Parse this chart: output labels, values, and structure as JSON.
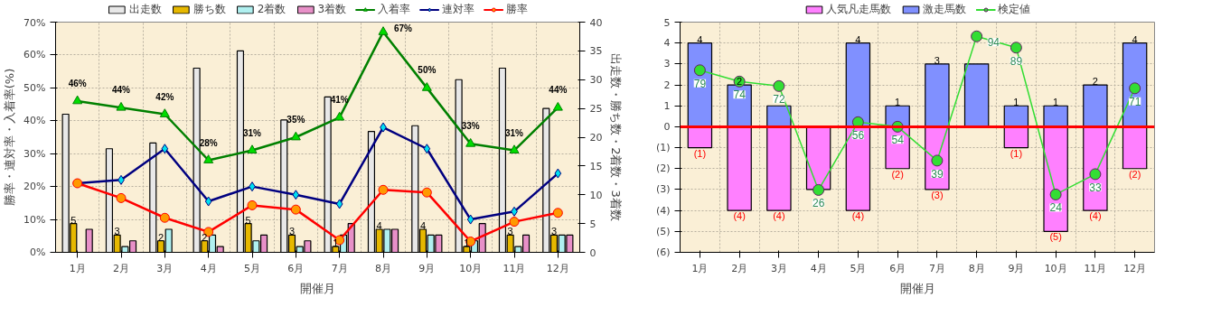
{
  "chart_data": [
    {
      "type": "bar",
      "xlabel": "開催月",
      "ylabel": "勝率・連対率・入着率(%)",
      "y2label": "出走数・勝ち数・2着数・3着数",
      "categories": [
        "1月",
        "2月",
        "3月",
        "4月",
        "5月",
        "6月",
        "7月",
        "8月",
        "9月",
        "10月",
        "11月",
        "12月"
      ],
      "ylim": [
        0,
        70
      ],
      "yticks": [
        {
          "value": 0,
          "label": "0%"
        },
        {
          "value": 10,
          "label": "10%"
        },
        {
          "value": 20,
          "label": "20%"
        },
        {
          "value": 30,
          "label": "30%"
        },
        {
          "value": 40,
          "label": "40%"
        },
        {
          "value": 50,
          "label": "50%"
        },
        {
          "value": 60,
          "label": "60%"
        },
        {
          "value": 70,
          "label": "70%"
        }
      ],
      "y2lim": [
        0,
        40
      ],
      "y2ticks": [
        0,
        5,
        10,
        15,
        20,
        25,
        30,
        35,
        40
      ],
      "grid": true,
      "legend": "top",
      "series": [
        {
          "name": "出走数",
          "color": "#e8e8e8",
          "axis": "y2",
          "values": [
            24,
            18,
            19,
            32,
            35,
            23,
            27,
            21,
            22,
            30,
            32,
            25
          ]
        },
        {
          "name": "勝ち数",
          "color": "#e6b800",
          "axis": "y2",
          "values": [
            5,
            3,
            2,
            2,
            5,
            3,
            1,
            4,
            4,
            1,
            3,
            3
          ],
          "value_labels": [
            "5",
            "3",
            "2",
            "2",
            "5",
            "3",
            "1",
            "4",
            "4",
            "1",
            "3",
            "3"
          ]
        },
        {
          "name": "2着数",
          "color": "#b0f0f0",
          "axis": "y2",
          "values": [
            0,
            1,
            4,
            3,
            2,
            1,
            3,
            4,
            3,
            2,
            1,
            3
          ]
        },
        {
          "name": "3着数",
          "color": "#e890c8",
          "axis": "y2",
          "values": [
            4,
            2,
            0,
            1,
            3,
            2,
            5,
            4,
            3,
            5,
            3,
            3
          ]
        },
        {
          "name": "入着率",
          "type": "line",
          "marker": "triangle",
          "color": "#008000",
          "values": [
            46,
            44,
            42,
            28,
            31,
            35,
            41,
            67,
            50,
            33,
            31,
            44
          ],
          "value_labels": [
            "46%",
            "44%",
            "42%",
            "28%",
            "31%",
            "35%",
            "41%",
            "67%",
            "50%",
            "33%",
            "31%",
            "44%"
          ]
        },
        {
          "name": "連対率",
          "type": "line",
          "marker": "diamond",
          "color": "#000080",
          "values": [
            21,
            22,
            31.5,
            15.5,
            20,
            17.5,
            14.7,
            38,
            31.5,
            10,
            12.4,
            24
          ]
        },
        {
          "name": "勝率",
          "type": "line",
          "marker": "circle",
          "color": "#ff0000",
          "values": [
            21,
            16.5,
            10.5,
            6.2,
            14.3,
            13,
            3.7,
            19,
            18.2,
            3.3,
            9.3,
            12
          ]
        }
      ]
    },
    {
      "type": "bar",
      "xlabel": "開催月",
      "categories": [
        "1月",
        "2月",
        "3月",
        "4月",
        "5月",
        "6月",
        "7月",
        "8月",
        "9月",
        "10月",
        "11月",
        "12月"
      ],
      "stacked": true,
      "ylim": [
        -6,
        5
      ],
      "yticks": [
        {
          "value": -6,
          "label": "(6)"
        },
        {
          "value": -5,
          "label": "(5)"
        },
        {
          "value": -4,
          "label": "(4)"
        },
        {
          "value": -3,
          "label": "(3)"
        },
        {
          "value": -2,
          "label": "(2)"
        },
        {
          "value": -1,
          "label": "(1)"
        },
        0,
        1,
        2,
        3,
        4,
        5
      ],
      "y2lim": [
        -1.6,
        100.3
      ],
      "grid": true,
      "legend": "top",
      "ref_lines": [
        {
          "axis": "y",
          "value": 0,
          "color": "#ff0000"
        }
      ],
      "series": [
        {
          "name": "人気凡走馬数",
          "color": "#ff80ff",
          "values": [
            -1,
            -4,
            -4,
            -3,
            -4,
            -2,
            -3,
            0,
            -1,
            -5,
            -4,
            -2
          ],
          "value_labels": [
            "(1)",
            "(4)",
            "(4)",
            null,
            "(4)",
            "(2)",
            "(3)",
            null,
            "(1)",
            "(5)",
            "(4)",
            "(2)"
          ]
        },
        {
          "name": "激走馬数",
          "color": "#8090ff",
          "values": [
            4,
            2,
            1,
            0,
            4,
            1,
            3,
            3,
            1,
            1,
            2,
            4
          ],
          "value_labels": [
            "4",
            "2",
            null,
            null,
            "4",
            "1",
            "3",
            null,
            "1",
            "1",
            "2",
            "4"
          ]
        },
        {
          "name": "検定値",
          "type": "line",
          "marker": "circle",
          "color": "#33dd33",
          "axis": "y2",
          "values": [
            79,
            74,
            72,
            26,
            56,
            54,
            39,
            94,
            89,
            24,
            33,
            71
          ],
          "value_labels": [
            "79",
            "74",
            "72",
            "26",
            "56",
            "54",
            "39",
            "94",
            "89",
            "24",
            "33",
            "71"
          ]
        }
      ]
    }
  ]
}
